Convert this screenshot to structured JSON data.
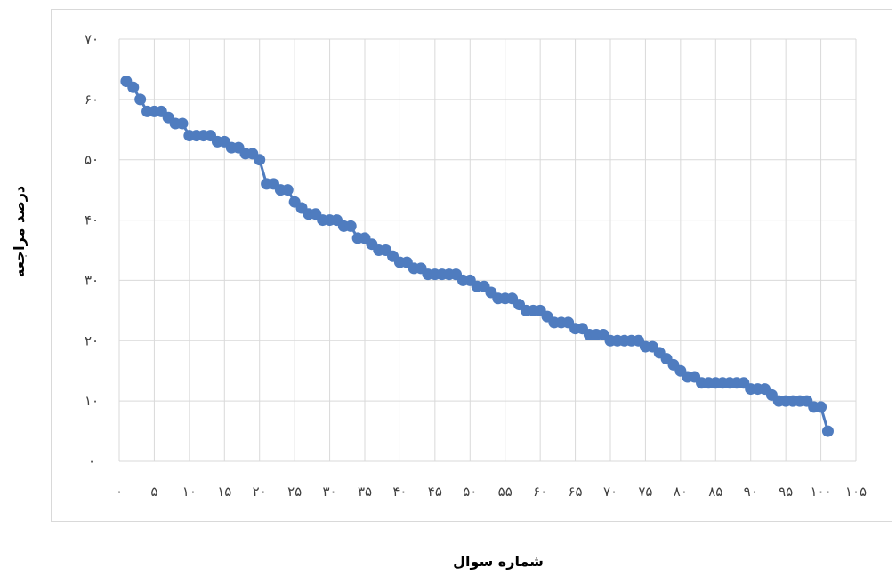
{
  "chart_data": {
    "type": "line",
    "title": "",
    "xlabel": "شماره سوال",
    "ylabel": "درصد مراجعه",
    "xlim": [
      0,
      105
    ],
    "ylim": [
      0,
      70
    ],
    "y_ticks": [
      0,
      10,
      20,
      30,
      40,
      50,
      60,
      70
    ],
    "y_tick_labels": [
      "۰",
      "۱۰",
      "۲۰",
      "۳۰",
      "۴۰",
      "۵۰",
      "۶۰",
      "۷۰"
    ],
    "x_ticks": [
      0,
      5,
      10,
      15,
      20,
      25,
      30,
      35,
      40,
      45,
      50,
      55,
      60,
      65,
      70,
      75,
      80,
      85,
      90,
      95,
      100,
      105
    ],
    "x_tick_labels": [
      "۰",
      "۵",
      "۱۰",
      "۱۵",
      "۲۰",
      "۲۵",
      "۳۰",
      "۳۵",
      "۴۰",
      "۴۵",
      "۵۰",
      "۵۵",
      "۶۰",
      "۶۵",
      "۷۰",
      "۷۵",
      "۸۰",
      "۸۵",
      "۹۰",
      "۹۵",
      "۱۰۰",
      "۱۰۵"
    ],
    "grid": true,
    "series": [
      {
        "color": "#4f7cbf",
        "x": [
          1,
          2,
          3,
          4,
          5,
          6,
          7,
          8,
          9,
          10,
          11,
          12,
          13,
          14,
          15,
          16,
          17,
          18,
          19,
          20,
          21,
          22,
          23,
          24,
          25,
          26,
          27,
          28,
          29,
          30,
          31,
          32,
          33,
          34,
          35,
          36,
          37,
          38,
          39,
          40,
          41,
          42,
          43,
          44,
          45,
          46,
          47,
          48,
          49,
          50,
          51,
          52,
          53,
          54,
          55,
          56,
          57,
          58,
          59,
          60,
          61,
          62,
          63,
          64,
          65,
          66,
          67,
          68,
          69,
          70,
          71,
          72,
          73,
          74,
          75,
          76,
          77,
          78,
          79,
          80,
          81,
          82,
          83,
          84,
          85,
          86,
          87,
          88,
          89,
          90,
          91,
          92,
          93,
          94,
          95,
          96,
          97,
          98,
          99,
          100,
          101
        ],
        "values": [
          63,
          62,
          60,
          58,
          58,
          58,
          57,
          56,
          56,
          54,
          54,
          54,
          54,
          53,
          53,
          52,
          52,
          51,
          51,
          50,
          46,
          46,
          45,
          45,
          43,
          42,
          41,
          41,
          40,
          40,
          40,
          39,
          39,
          37,
          37,
          36,
          35,
          35,
          34,
          33,
          33,
          32,
          32,
          31,
          31,
          31,
          31,
          31,
          30,
          30,
          29,
          29,
          28,
          27,
          27,
          27,
          26,
          25,
          25,
          25,
          24,
          23,
          23,
          23,
          22,
          22,
          21,
          21,
          21,
          20,
          20,
          20,
          20,
          20,
          19,
          19,
          18,
          17,
          16,
          15,
          14,
          14,
          13,
          13,
          13,
          13,
          13,
          13,
          13,
          12,
          12,
          12,
          11,
          10,
          10,
          10,
          10,
          10,
          9,
          9,
          5
        ]
      }
    ]
  }
}
